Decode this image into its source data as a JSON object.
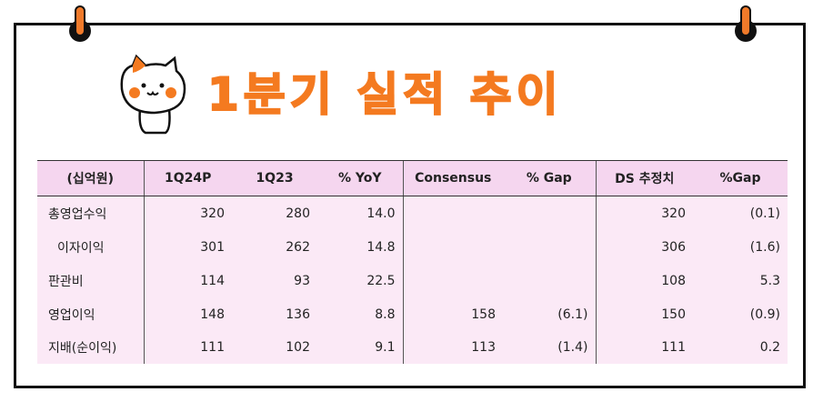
{
  "title": "1분기 실적 추이",
  "table": {
    "headers": [
      "(십억원)",
      "1Q24P",
      "1Q23",
      "% YoY",
      "Consensus",
      "% Gap",
      "DS 추정치",
      "%Gap"
    ],
    "rows": [
      {
        "label": "총영업수익",
        "cells": [
          "320",
          "280",
          "14.0",
          "",
          "",
          "320",
          "(0.1)"
        ]
      },
      {
        "label": "이자이익",
        "cells": [
          "301",
          "262",
          "14.8",
          "",
          "",
          "306",
          "(1.6)"
        ]
      },
      {
        "label": "판관비",
        "cells": [
          "114",
          "93",
          "22.5",
          "",
          "",
          "108",
          "5.3"
        ]
      },
      {
        "label": "영업이익",
        "cells": [
          "148",
          "136",
          "8.8",
          "158",
          "(6.1)",
          "150",
          "(0.9)"
        ]
      },
      {
        "label": "지배(순이익)",
        "cells": [
          "111",
          "102",
          "9.1",
          "113",
          "(1.4)",
          "111",
          "0.2"
        ]
      }
    ]
  },
  "colors": {
    "accent": "#f47a20",
    "header_bg": "#f5d6ef",
    "row_bg": "#fbe9f6"
  },
  "icons": [
    "cat-mascot-icon",
    "binder-ring-icon"
  ]
}
